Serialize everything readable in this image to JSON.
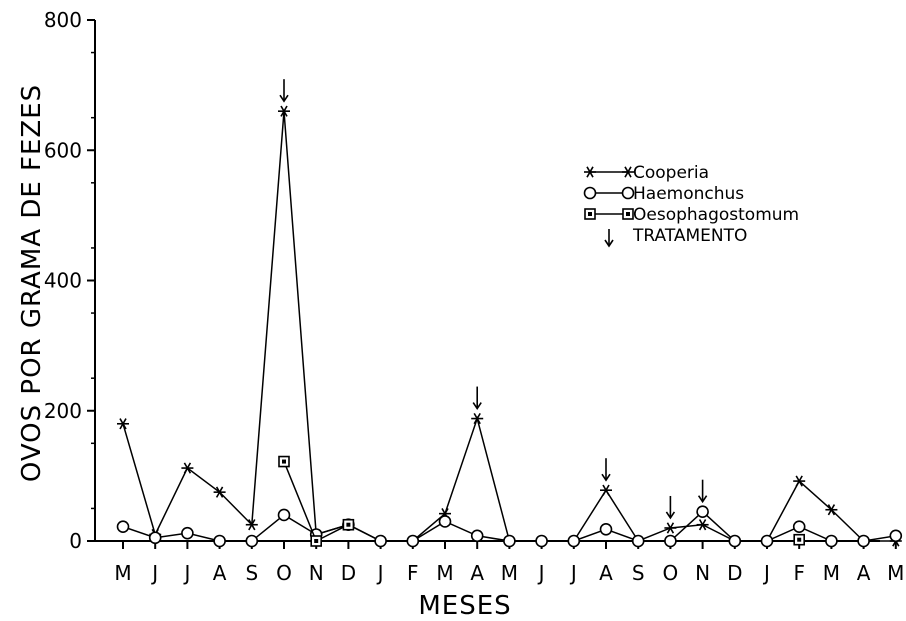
{
  "chart_data": {
    "type": "line",
    "title": "",
    "xlabel": "MESES",
    "ylabel": "OVOS POR GRAMA DE FEZES",
    "ylim": [
      0,
      800
    ],
    "yticks": [
      "0",
      "200",
      "400",
      "600",
      "800"
    ],
    "categories": [
      "M",
      "J",
      "J",
      "A",
      "S",
      "O",
      "N",
      "D",
      "J",
      "F",
      "M",
      "A",
      "M",
      "J",
      "J",
      "A",
      "S",
      "O",
      "N",
      "D",
      "J",
      "F",
      "M",
      "A",
      "M"
    ],
    "series": [
      {
        "name": "Cooperia",
        "marker": "asterisk",
        "values": [
          180,
          10,
          112,
          75,
          25,
          660,
          10,
          25,
          0,
          0,
          42,
          188,
          0,
          0,
          0,
          78,
          0,
          20,
          25,
          0,
          0,
          92,
          48,
          0,
          0
        ]
      },
      {
        "name": "Haemonchus",
        "marker": "circle",
        "values": [
          22,
          5,
          12,
          0,
          0,
          40,
          10,
          25,
          0,
          0,
          30,
          8,
          0,
          0,
          0,
          18,
          0,
          0,
          45,
          0,
          0,
          22,
          0,
          0,
          8
        ]
      },
      {
        "name": "Oesophagostomum",
        "marker": "square",
        "values": [
          null,
          null,
          null,
          null,
          null,
          122,
          0,
          25,
          null,
          null,
          null,
          null,
          null,
          null,
          null,
          null,
          null,
          null,
          null,
          null,
          null,
          2,
          null,
          null,
          null
        ]
      }
    ],
    "treatment": {
      "label": "TRATAMENTO",
      "indices": [
        5,
        11,
        15,
        17,
        18
      ]
    }
  }
}
